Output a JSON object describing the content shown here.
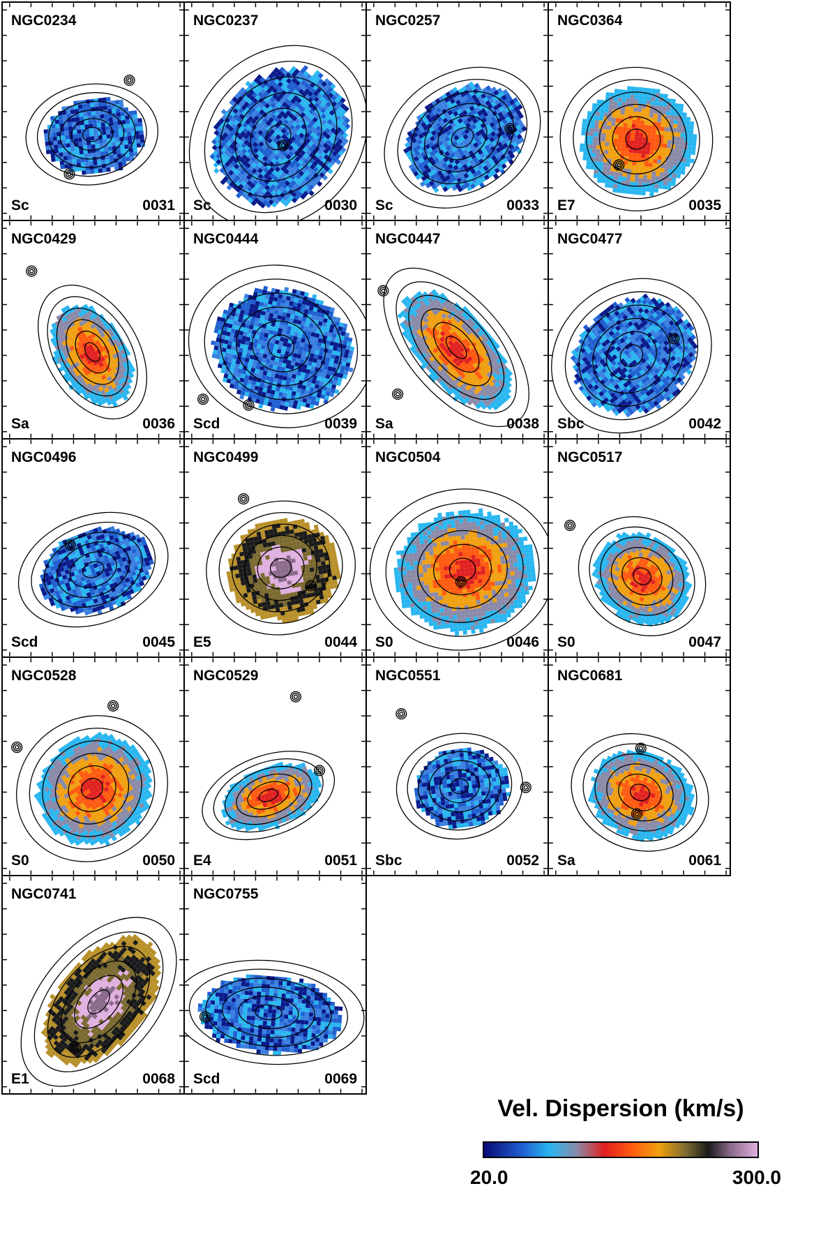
{
  "panels": [
    {
      "name": "NGC0234",
      "type": "Sc",
      "id": "0031",
      "cmap": "blue"
    },
    {
      "name": "NGC0237",
      "type": "Sc",
      "id": "0030",
      "cmap": "blue"
    },
    {
      "name": "NGC0257",
      "type": "Sc",
      "id": "0033",
      "cmap": "blue"
    },
    {
      "name": "NGC0364",
      "type": "E7",
      "id": "0035",
      "cmap": "warm"
    },
    {
      "name": "NGC0429",
      "type": "Sa",
      "id": "0036",
      "cmap": "warm"
    },
    {
      "name": "NGC0444",
      "type": "Scd",
      "id": "0039",
      "cmap": "blue"
    },
    {
      "name": "NGC0447",
      "type": "Sa",
      "id": "0038",
      "cmap": "warm"
    },
    {
      "name": "NGC0477",
      "type": "Sbc",
      "id": "0042",
      "cmap": "blue"
    },
    {
      "name": "NGC0496",
      "type": "Scd",
      "id": "0045",
      "cmap": "blue"
    },
    {
      "name": "NGC0499",
      "type": "E5",
      "id": "0044",
      "cmap": "hot"
    },
    {
      "name": "NGC0504",
      "type": "S0",
      "id": "0046",
      "cmap": "warm"
    },
    {
      "name": "NGC0517",
      "type": "S0",
      "id": "0047",
      "cmap": "warm"
    },
    {
      "name": "NGC0528",
      "type": "S0",
      "id": "0050",
      "cmap": "warm"
    },
    {
      "name": "NGC0529",
      "type": "E4",
      "id": "0051",
      "cmap": "warm"
    },
    {
      "name": "NGC0551",
      "type": "Sbc",
      "id": "0052",
      "cmap": "blue"
    },
    {
      "name": "NGC0681",
      "type": "Sa",
      "id": "0061",
      "cmap": "warm"
    },
    {
      "name": "NGC0741",
      "type": "E1",
      "id": "0068",
      "cmap": "hot"
    },
    {
      "name": "NGC0755",
      "type": "Scd",
      "id": "0069",
      "cmap": "blue"
    }
  ],
  "legend": {
    "title": "Vel. Dispersion (km/s)",
    "min": "20.0",
    "max": "300.0"
  },
  "colors": {
    "blue_map": [
      "#0a1a8a",
      "#1f5fd0",
      "#29b6f0",
      "#3a80e0"
    ],
    "warm_map": [
      "#e02020",
      "#ff5a10",
      "#f0a010",
      "#8a8aa8",
      "#29b6f0"
    ],
    "hot_map": [
      "#8a6a8a",
      "#e0b0e0",
      "#7a6a30",
      "#1a1a1a",
      "#b8902a"
    ]
  }
}
